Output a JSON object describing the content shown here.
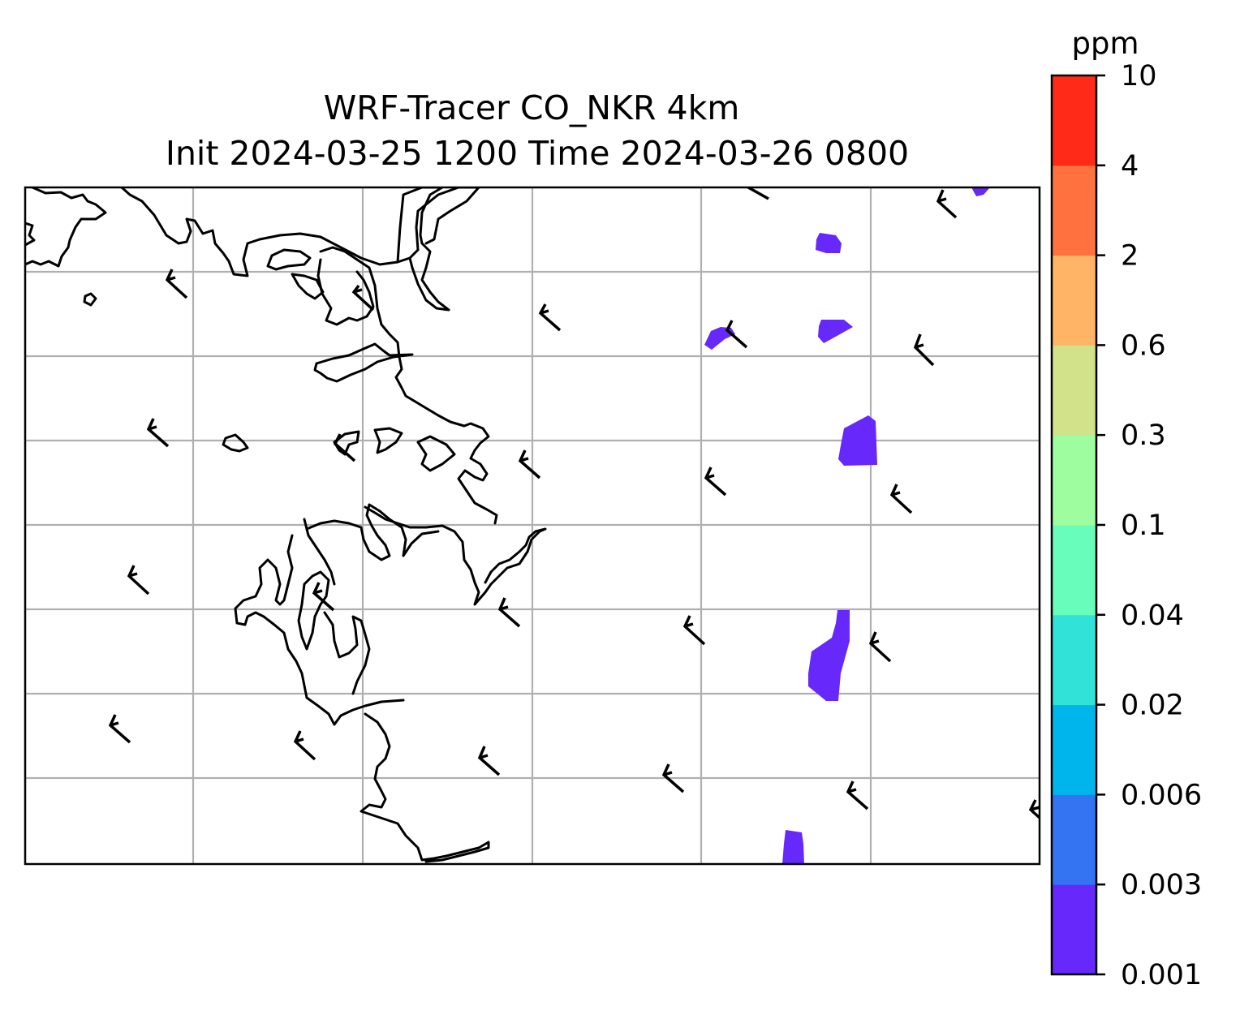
{
  "title": {
    "line1": "WRF-Tracer CO_NKR 4km",
    "line2": "Init 2024-03-25 1200 Time 2024-03-26 0800"
  },
  "colorbar": {
    "unit": "ppm",
    "levels": [
      "0.001",
      "0.003",
      "0.006",
      "0.02",
      "0.04",
      "0.1",
      "0.3",
      "0.6",
      "2",
      "4",
      "10"
    ],
    "colors": [
      "#6628fb",
      "#3473f2",
      "#00b5ec",
      "#30e2d8",
      "#69fdbc",
      "#9dfd9f",
      "#d1e28a",
      "#ffb466",
      "#ff7240",
      "#ff2a18"
    ]
  },
  "map": {
    "gridlines": true,
    "gridline_color": "#b0b0b0",
    "coastline_color": "#000000",
    "tracer_fill_color": "#6628fb",
    "wind_barbs": true
  }
}
